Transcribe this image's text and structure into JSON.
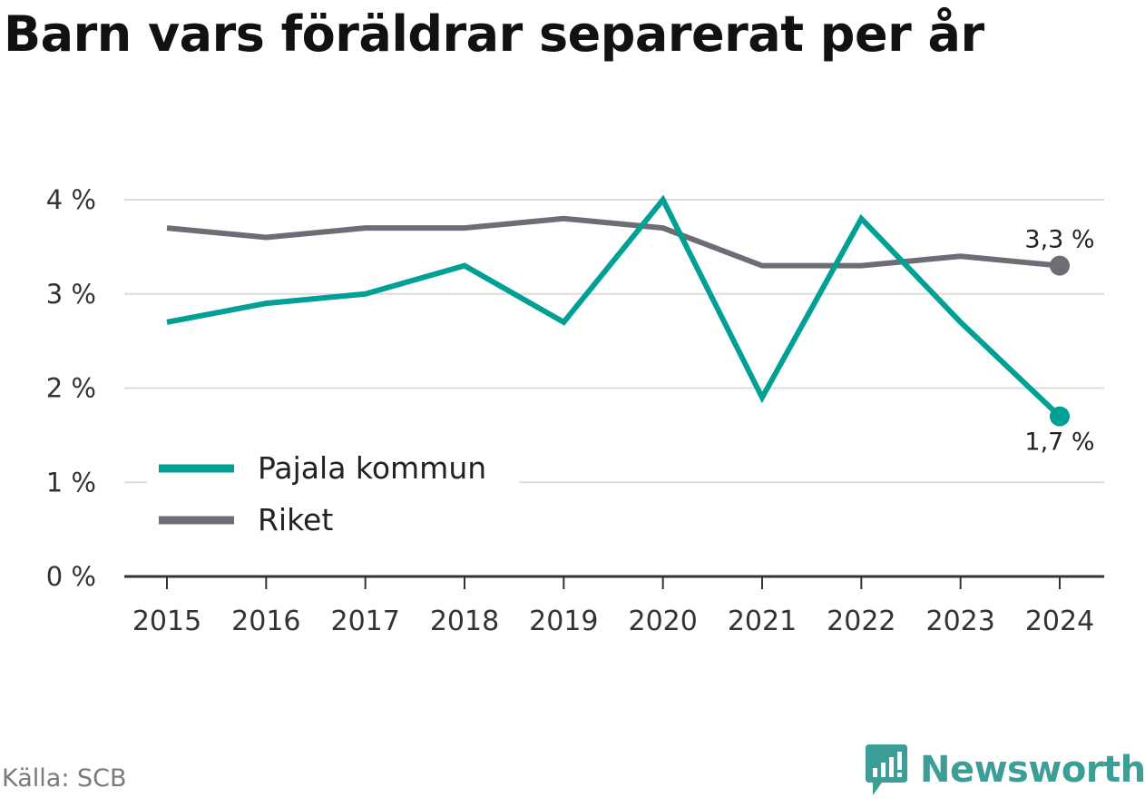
{
  "title": "Barn vars föräldrar separerat per år",
  "source": "Källa: SCB",
  "brand": {
    "name": "Newsworthy",
    "icon": "newsworthy-logo-icon",
    "color": "#3d9e98"
  },
  "chart_data": {
    "type": "line",
    "title": "Barn vars föräldrar separerat per år",
    "xlabel": "",
    "ylabel": "",
    "x": [
      "2015",
      "2016",
      "2017",
      "2018",
      "2019",
      "2020",
      "2021",
      "2022",
      "2023",
      "2024"
    ],
    "ylim": [
      0,
      4
    ],
    "y_ticks": [
      {
        "value": 0,
        "label": "0 %"
      },
      {
        "value": 1,
        "label": "1 %"
      },
      {
        "value": 2,
        "label": "2 %"
      },
      {
        "value": 3,
        "label": "3 %"
      },
      {
        "value": 4,
        "label": "4 %"
      }
    ],
    "grid": true,
    "legend": "bottom-left",
    "series": [
      {
        "name": "Riket",
        "color": "#6e6d75",
        "values": [
          3.7,
          3.6,
          3.7,
          3.7,
          3.8,
          3.7,
          3.3,
          3.3,
          3.4,
          3.3
        ],
        "end_label": "3,3 %"
      },
      {
        "name": "Pajala kommun",
        "color": "#00a095",
        "values": [
          2.7,
          2.9,
          3.0,
          3.3,
          2.7,
          4.0,
          1.9,
          3.8,
          2.7,
          1.7
        ],
        "end_label": "1,7 %"
      }
    ]
  }
}
